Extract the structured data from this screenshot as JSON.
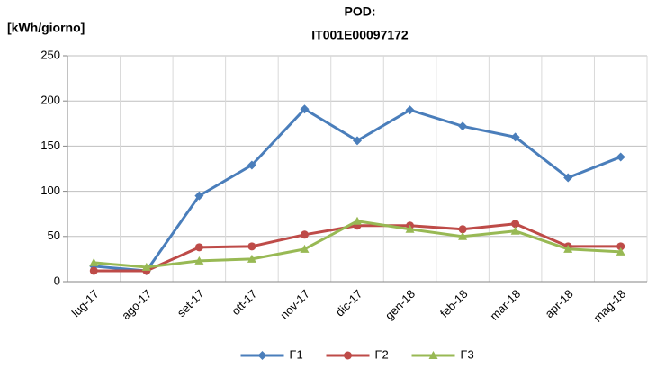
{
  "chart_data": {
    "type": "line",
    "title": [
      "POD:",
      "IT001E00097172"
    ],
    "y_label": "[kWh/giorno]",
    "categories": [
      "lug-17",
      "ago-17",
      "set-17",
      "ott-17",
      "nov-17",
      "dic-17",
      "gen-18",
      "feb-18",
      "mar-18",
      "apr-18",
      "mag-18"
    ],
    "series": [
      {
        "name": "F1",
        "color": "#4a7ebb",
        "marker": "diamond",
        "values": [
          17,
          12,
          95,
          129,
          191,
          156,
          190,
          172,
          160,
          115,
          138
        ]
      },
      {
        "name": "F2",
        "color": "#be4b48",
        "marker": "circle",
        "values": [
          12,
          12,
          38,
          39,
          52,
          62,
          62,
          58,
          64,
          39,
          39
        ]
      },
      {
        "name": "F3",
        "color": "#98b954",
        "marker": "triangle",
        "values": [
          21,
          16,
          23,
          25,
          36,
          67,
          58,
          50,
          56,
          36,
          33
        ]
      }
    ],
    "ylim": [
      0,
      250
    ],
    "yticks": [
      0,
      50,
      100,
      150,
      200,
      250
    ],
    "grid": true,
    "legend": "bottom"
  }
}
